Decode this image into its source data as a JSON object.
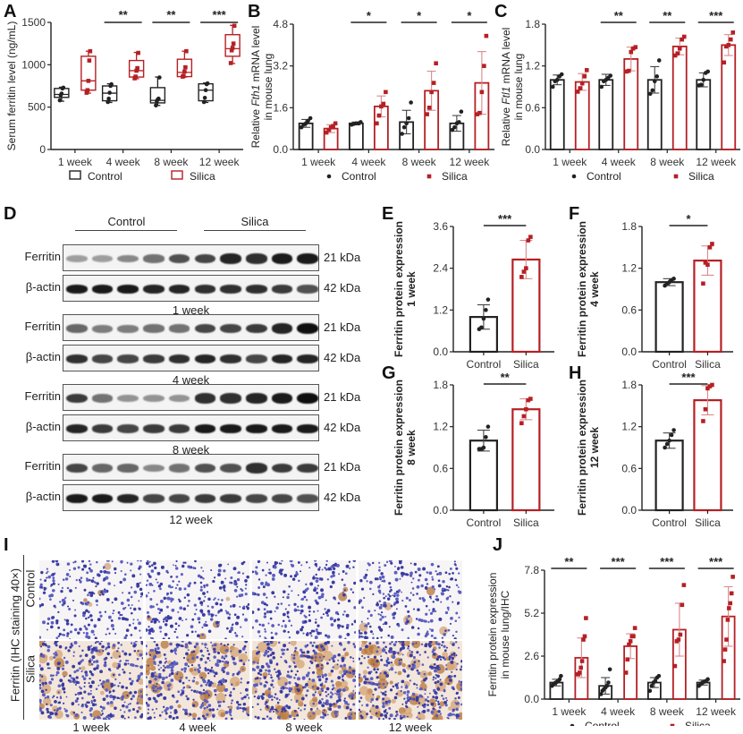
{
  "panels": {
    "A": "A",
    "B": "B",
    "C": "C",
    "D": "D",
    "E": "E",
    "F": "F",
    "G": "G",
    "H": "H",
    "I": "I",
    "J": "J"
  },
  "colors": {
    "control": "#222222",
    "silica": "#b52025",
    "silica_light": "#d98a8c"
  },
  "legend": {
    "control": "Control",
    "silica": "Silica"
  },
  "chart_data": [
    {
      "id": "A",
      "type": "box",
      "ylabel": "Serum ferritin level (ng/mL)",
      "ylim": [
        0,
        1500
      ],
      "yticks": [
        "0",
        "500",
        "1000",
        "1500"
      ],
      "categories": [
        "1 week",
        "4 week",
        "8 week",
        "12 week"
      ],
      "legend_position": "bottom",
      "significance": [
        "",
        "**",
        "**",
        "***"
      ],
      "series": [
        {
          "name": "Control",
          "boxes": [
            {
              "min": 570,
              "q1": 615,
              "median": 650,
              "q3": 720,
              "max": 735,
              "points": [
                580,
                640,
                660,
                720,
                730
              ]
            },
            {
              "min": 555,
              "q1": 575,
              "median": 665,
              "q3": 750,
              "max": 775,
              "points": [
                560,
                600,
                670,
                750,
                770
              ]
            },
            {
              "min": 520,
              "q1": 550,
              "median": 580,
              "q3": 730,
              "max": 855,
              "points": [
                520,
                570,
                590,
                600,
                850
              ]
            },
            {
              "min": 555,
              "q1": 575,
              "median": 700,
              "q3": 775,
              "max": 785,
              "points": [
                560,
                610,
                700,
                770,
                780
              ]
            }
          ]
        },
        {
          "name": "Silica",
          "boxes": [
            {
              "min": 665,
              "q1": 700,
              "median": 810,
              "q3": 1100,
              "max": 1160,
              "points": [
                670,
                700,
                810,
                1050,
                1160
              ]
            },
            {
              "min": 835,
              "q1": 855,
              "median": 930,
              "q3": 1050,
              "max": 1145,
              "points": [
                840,
                860,
                930,
                960,
                1140
              ]
            },
            {
              "min": 855,
              "q1": 860,
              "median": 910,
              "q3": 1065,
              "max": 1160,
              "points": [
                860,
                870,
                920,
                970,
                1160
              ]
            },
            {
              "min": 1015,
              "q1": 1100,
              "median": 1190,
              "q3": 1355,
              "max": 1465,
              "points": [
                1020,
                1170,
                1200,
                1250,
                1460
              ]
            }
          ]
        }
      ]
    },
    {
      "id": "B",
      "type": "bar",
      "ylabel_parts": [
        "Relative ",
        "Fth1",
        " mRNA level"
      ],
      "ylabel2": "in  mouse lung",
      "ylim": [
        0,
        4.8
      ],
      "yticks": [
        "0.0",
        "1.6",
        "3.2",
        "4.8"
      ],
      "categories": [
        "1 week",
        "4 week",
        "8 week",
        "12 week"
      ],
      "legend_position": "bottom",
      "significance": [
        "",
        "*",
        "*",
        "*"
      ],
      "series": [
        {
          "name": "Control",
          "values": [
            1.0,
            1.0,
            1.05,
            1.0
          ],
          "sd": [
            0.15,
            0.05,
            0.45,
            0.3
          ],
          "points": [
            [
              0.85,
              0.95,
              1.0,
              1.1,
              1.2
            ],
            [
              0.95,
              0.98,
              1.0,
              1.0,
              1.05
            ],
            [
              0.6,
              0.85,
              1.0,
              1.2,
              1.8
            ],
            [
              0.75,
              0.85,
              1.0,
              1.05,
              1.45
            ]
          ]
        },
        {
          "name": "Silica",
          "values": [
            0.8,
            1.65,
            2.25,
            2.55
          ],
          "sd": [
            0.15,
            0.4,
            0.75,
            1.2
          ],
          "points": [
            [
              0.65,
              0.75,
              0.85,
              0.9,
              1.0
            ],
            [
              1.0,
              1.3,
              1.65,
              1.75,
              2.2
            ],
            [
              1.35,
              1.6,
              2.2,
              2.55,
              3.3
            ],
            [
              1.35,
              1.4,
              2.2,
              3.2,
              4.35
            ]
          ]
        }
      ]
    },
    {
      "id": "C",
      "type": "bar",
      "ylabel_parts": [
        "Relative ",
        "Ftl1",
        " mRNA level"
      ],
      "ylabel2": "in  mouse lung",
      "ylim": [
        0,
        1.8
      ],
      "yticks": [
        "0.0",
        "0.6",
        "1.2",
        "1.8"
      ],
      "categories": [
        "1 week",
        "4 week",
        "8 week",
        "12 week"
      ],
      "legend_position": "bottom",
      "significance": [
        "",
        "**",
        "**",
        "***"
      ],
      "series": [
        {
          "name": "Control",
          "values": [
            1.0,
            1.0,
            1.0,
            1.0
          ],
          "sd": [
            0.07,
            0.08,
            0.19,
            0.1
          ],
          "points": [
            [
              0.9,
              0.98,
              1.0,
              1.05,
              1.08
            ],
            [
              0.9,
              0.98,
              1.0,
              1.03,
              1.06
            ],
            [
              0.8,
              0.85,
              0.98,
              1.05,
              1.28
            ],
            [
              0.92,
              0.93,
              1.0,
              1.1,
              1.12
            ]
          ]
        },
        {
          "name": "Silica",
          "values": [
            0.97,
            1.3,
            1.48,
            1.5
          ],
          "sd": [
            0.12,
            0.17,
            0.12,
            0.15
          ],
          "points": [
            [
              0.83,
              0.88,
              0.95,
              1.05,
              1.14
            ],
            [
              1.12,
              1.13,
              1.4,
              1.45,
              1.47
            ],
            [
              1.35,
              1.38,
              1.45,
              1.58,
              1.62
            ],
            [
              1.25,
              1.48,
              1.5,
              1.58,
              1.68
            ]
          ]
        }
      ]
    },
    {
      "id": "E",
      "type": "bar",
      "ylabel": "Ferritin protein expression",
      "ylabel2": "1 week",
      "ylim": [
        0,
        3.6
      ],
      "yticks": [
        "0.0",
        "1.2",
        "2.4",
        "3.6"
      ],
      "categories": [
        "Control",
        "Silica"
      ],
      "significance": "***",
      "series": [
        {
          "name": "Control",
          "value": 1.0,
          "sd": 0.35,
          "points": [
            0.65,
            0.7,
            0.95,
            1.2,
            1.5
          ]
        },
        {
          "name": "Silica",
          "value": 2.65,
          "sd": 0.55,
          "points": [
            2.15,
            2.3,
            2.4,
            3.2,
            3.3
          ]
        }
      ]
    },
    {
      "id": "F",
      "type": "bar",
      "ylabel": "Ferritin protein expression",
      "ylabel2": "4 week",
      "ylim": [
        0,
        1.8
      ],
      "yticks": [
        "0.0",
        "0.6",
        "1.2",
        "1.8"
      ],
      "categories": [
        "Control",
        "Silica"
      ],
      "significance": "*",
      "series": [
        {
          "name": "Control",
          "value": 1.0,
          "sd": 0.05,
          "points": [
            0.95,
            0.98,
            1.0,
            1.03,
            1.05
          ]
        },
        {
          "name": "Silica",
          "value": 1.31,
          "sd": 0.21,
          "points": [
            0.98,
            1.28,
            1.25,
            1.5,
            1.55
          ]
        }
      ]
    },
    {
      "id": "G",
      "type": "bar",
      "ylabel": "Ferritin protein expression",
      "ylabel2": "8 week",
      "ylim": [
        0,
        1.8
      ],
      "yticks": [
        "0.0",
        "0.6",
        "1.2",
        "1.8"
      ],
      "categories": [
        "Control",
        "Silica"
      ],
      "significance": "**",
      "series": [
        {
          "name": "Control",
          "value": 1.0,
          "sd": 0.15,
          "points": [
            0.88,
            0.88,
            0.9,
            1.05,
            1.2
          ]
        },
        {
          "name": "Silica",
          "value": 1.45,
          "sd": 0.15,
          "points": [
            1.25,
            1.35,
            1.45,
            1.58,
            1.6
          ]
        }
      ]
    },
    {
      "id": "H",
      "type": "bar",
      "ylabel": "Ferritin protein expression",
      "ylabel2": "12 week",
      "ylim": [
        0,
        1.8
      ],
      "yticks": [
        "0.0",
        "0.6",
        "1.2",
        "1.8"
      ],
      "categories": [
        "Control",
        "Silica"
      ],
      "significance": "***",
      "series": [
        {
          "name": "Control",
          "value": 1.0,
          "sd": 0.11,
          "points": [
            0.9,
            0.95,
            1.0,
            1.08,
            1.15
          ]
        },
        {
          "name": "Silica",
          "value": 1.58,
          "sd": 0.21,
          "points": [
            1.28,
            1.45,
            1.75,
            1.78,
            1.8
          ]
        }
      ]
    },
    {
      "id": "J",
      "type": "bar",
      "ylabel": "Ferritin protein expression",
      "ylabel2": "in mouse lung/IHC",
      "ylim": [
        0,
        7.8
      ],
      "yticks": [
        "0.0",
        "2.6",
        "5.2",
        "7.8"
      ],
      "categories": [
        "1 week",
        "4 week",
        "8 week",
        "12 week"
      ],
      "legend_position": "bottom",
      "significance": [
        "**",
        "***",
        "***",
        "***"
      ],
      "series": [
        {
          "name": "Control",
          "values": [
            1.0,
            0.8,
            1.0,
            1.0
          ],
          "sd": [
            0.2,
            0.5,
            0.3,
            0.15
          ],
          "points": [
            [
              0.8,
              0.9,
              0.95,
              1.0,
              1.05,
              1.1,
              1.2,
              1.4
            ],
            [
              0.3,
              0.5,
              0.6,
              0.7,
              0.8,
              1.0,
              1.8
            ],
            [
              0.5,
              0.8,
              1.0,
              1.1,
              1.3,
              1.4
            ],
            [
              0.8,
              0.9,
              1.0,
              1.05,
              1.1,
              1.2
            ]
          ]
        },
        {
          "name": "Silica",
          "values": [
            2.5,
            3.2,
            4.2,
            5.0
          ],
          "sd": [
            1.2,
            0.75,
            1.6,
            1.8
          ],
          "points": [
            [
              1.5,
              1.5,
              1.6,
              1.9,
              2.3,
              3.6,
              3.8,
              4.9
            ],
            [
              1.6,
              2.4,
              3.3,
              3.5,
              3.8,
              3.8,
              4.3
            ],
            [
              2.0,
              3.5,
              3.6,
              3.9,
              5.7,
              6.9
            ],
            [
              2.3,
              3.0,
              3.6,
              4.8,
              5.5,
              5.8,
              6.4,
              7.4
            ]
          ]
        }
      ]
    }
  ],
  "western_blot": {
    "group_labels": {
      "control": "Control",
      "silica": "Silica"
    },
    "rows": [
      {
        "week": "1 week",
        "ferritin_intensity": [
          0.35,
          0.35,
          0.45,
          0.55,
          0.7,
          0.75,
          0.9,
          0.85,
          0.95,
          0.95
        ],
        "actin_intensity": [
          0.95,
          0.95,
          0.95,
          0.9,
          0.9,
          0.85,
          0.85,
          0.85,
          0.8,
          0.7
        ]
      },
      {
        "week": "4 week",
        "ferritin_intensity": [
          0.6,
          0.5,
          0.5,
          0.55,
          0.55,
          0.75,
          0.75,
          0.8,
          0.9,
          1.0
        ],
        "actin_intensity": [
          0.85,
          0.75,
          0.75,
          0.8,
          0.85,
          0.9,
          0.85,
          0.75,
          0.9,
          0.9
        ]
      },
      {
        "week": "8 week",
        "ferritin_intensity": [
          0.8,
          0.55,
          0.4,
          0.4,
          0.4,
          0.85,
          0.85,
          0.9,
          0.95,
          1.0
        ],
        "actin_intensity": [
          0.9,
          0.8,
          0.75,
          0.8,
          0.8,
          0.95,
          0.95,
          0.95,
          0.95,
          0.95
        ]
      },
      {
        "week": "12 week",
        "ferritin_intensity": [
          0.75,
          0.6,
          0.6,
          0.45,
          0.55,
          0.7,
          0.7,
          0.85,
          0.8,
          0.8
        ],
        "actin_intensity": [
          0.95,
          0.95,
          0.9,
          0.75,
          0.75,
          0.8,
          0.8,
          0.75,
          0.75,
          0.7
        ]
      }
    ],
    "protein_ferritin": "Ferritin",
    "protein_actin": "β-actin",
    "kda_ferritin": "21 kDa",
    "kda_actin": "42 kDa"
  },
  "ihc": {
    "side_label": "Ferritin (IHC staining 40×)",
    "row_labels": [
      "Control",
      "Silica"
    ],
    "columns": [
      "1 week",
      "4 week",
      "8 week",
      "12 week"
    ],
    "brown_staining": [
      [
        0.03,
        0.03,
        0.02,
        0.04
      ],
      [
        0.3,
        0.4,
        0.55,
        0.7
      ]
    ]
  }
}
